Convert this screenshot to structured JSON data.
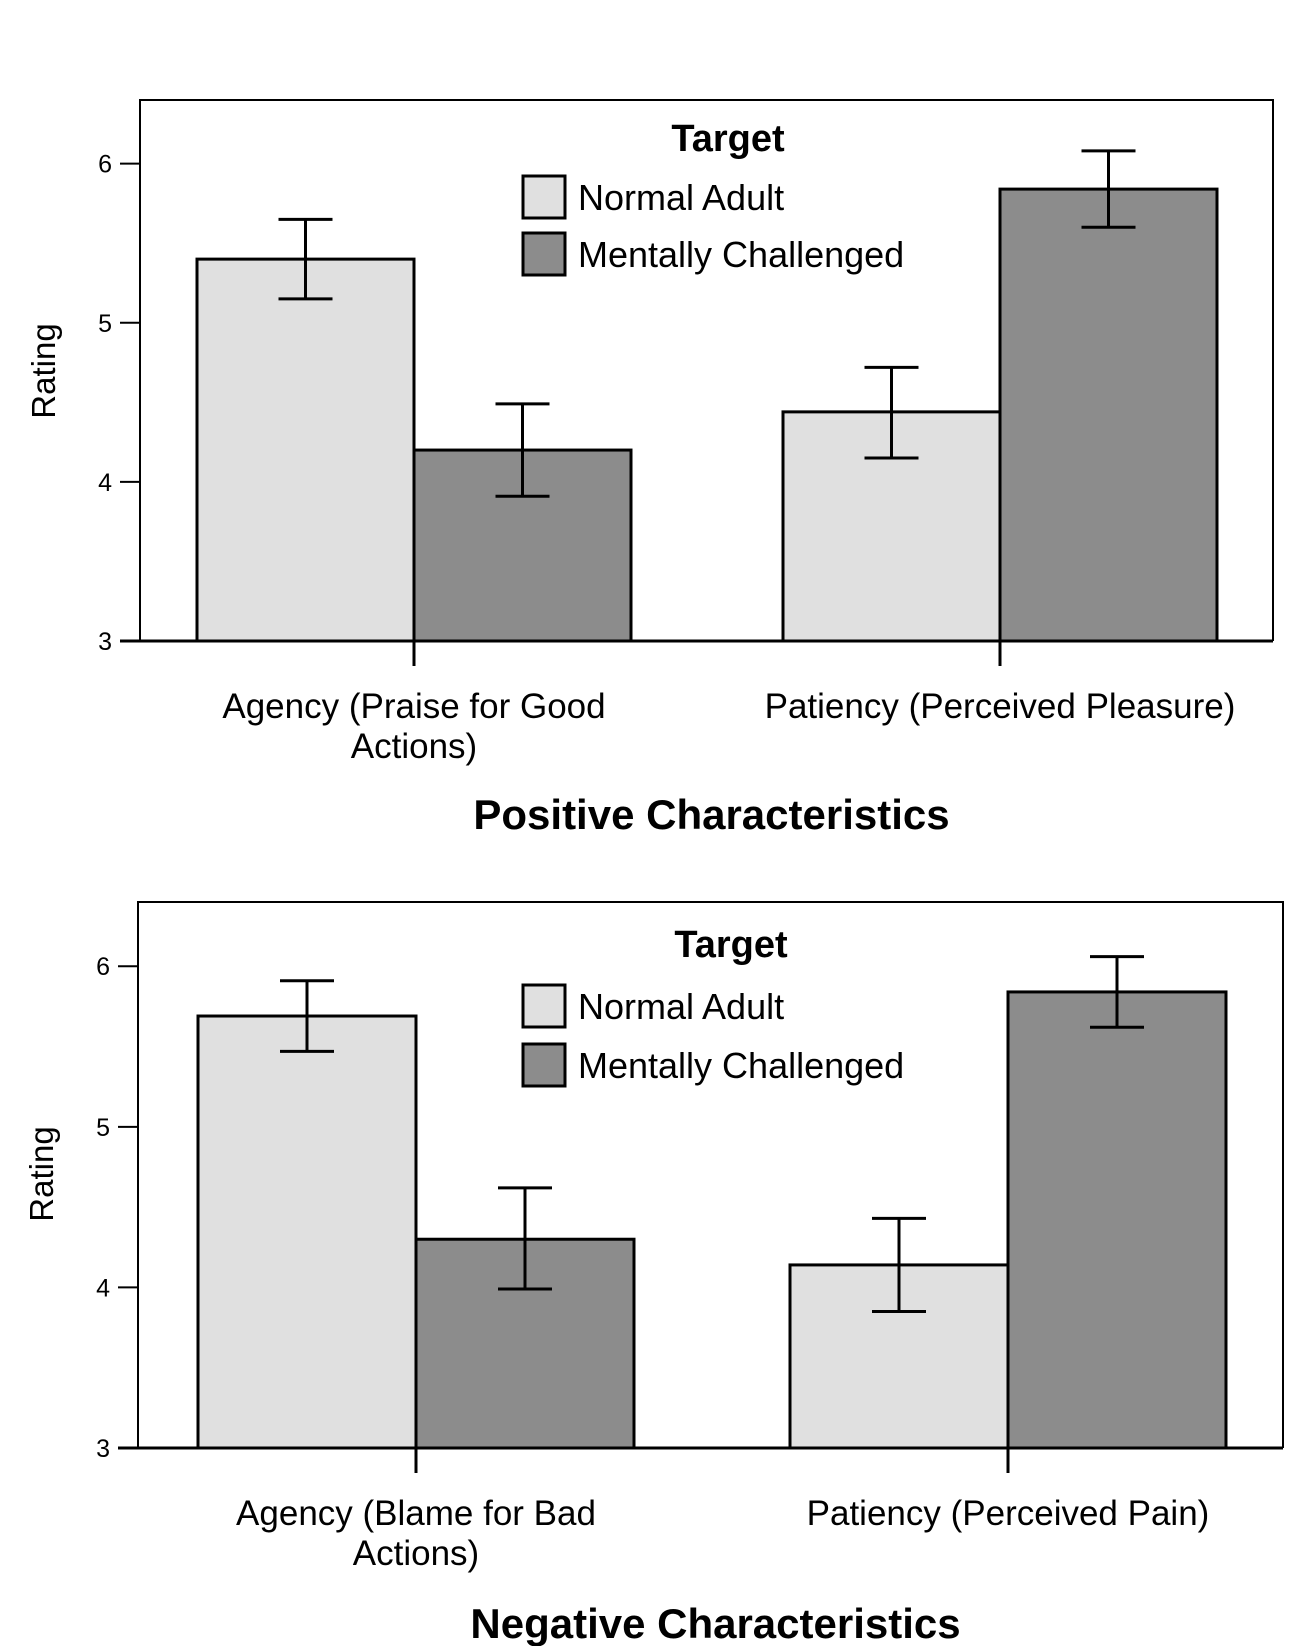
{
  "chart_data": [
    {
      "type": "bar",
      "title": "Positive Characteristics",
      "ylabel": "Rating",
      "ylim": [
        3,
        6.4
      ],
      "yticks": [
        "3",
        "4",
        "5",
        "6"
      ],
      "categories": [
        [
          "Agency (Praise for Good",
          "Actions)"
        ],
        [
          "Patiency (Perceived Pleasure)"
        ]
      ],
      "legend": {
        "title": "Target",
        "position": "top-center"
      },
      "series": [
        {
          "name": "Normal Adult",
          "color": "#e0e0e0",
          "values": [
            5.4,
            4.44
          ],
          "err_low": [
            5.15,
            4.15
          ],
          "err_high": [
            5.65,
            4.72
          ]
        },
        {
          "name": "Mentally Challenged",
          "color": "#8c8c8c",
          "values": [
            4.2,
            5.84
          ],
          "err_low": [
            3.91,
            5.6
          ],
          "err_high": [
            4.49,
            6.08
          ]
        }
      ]
    },
    {
      "type": "bar",
      "title": "Negative Characteristics",
      "ylabel": "Rating",
      "ylim": [
        3,
        6.4
      ],
      "yticks": [
        "3",
        "4",
        "5",
        "6"
      ],
      "categories": [
        [
          "Agency (Blame for Bad",
          "Actions)"
        ],
        [
          "Patiency (Perceived Pain)"
        ]
      ],
      "legend": {
        "title": "Target",
        "position": "top-center"
      },
      "series": [
        {
          "name": "Normal Adult",
          "color": "#e0e0e0",
          "values": [
            5.69,
            4.14
          ],
          "err_low": [
            5.47,
            3.85
          ],
          "err_high": [
            5.91,
            4.43
          ]
        },
        {
          "name": "Mentally Challenged",
          "color": "#8c8c8c",
          "values": [
            4.3,
            5.84
          ],
          "err_low": [
            3.99,
            5.62
          ],
          "err_high": [
            4.62,
            6.06
          ]
        }
      ]
    }
  ]
}
